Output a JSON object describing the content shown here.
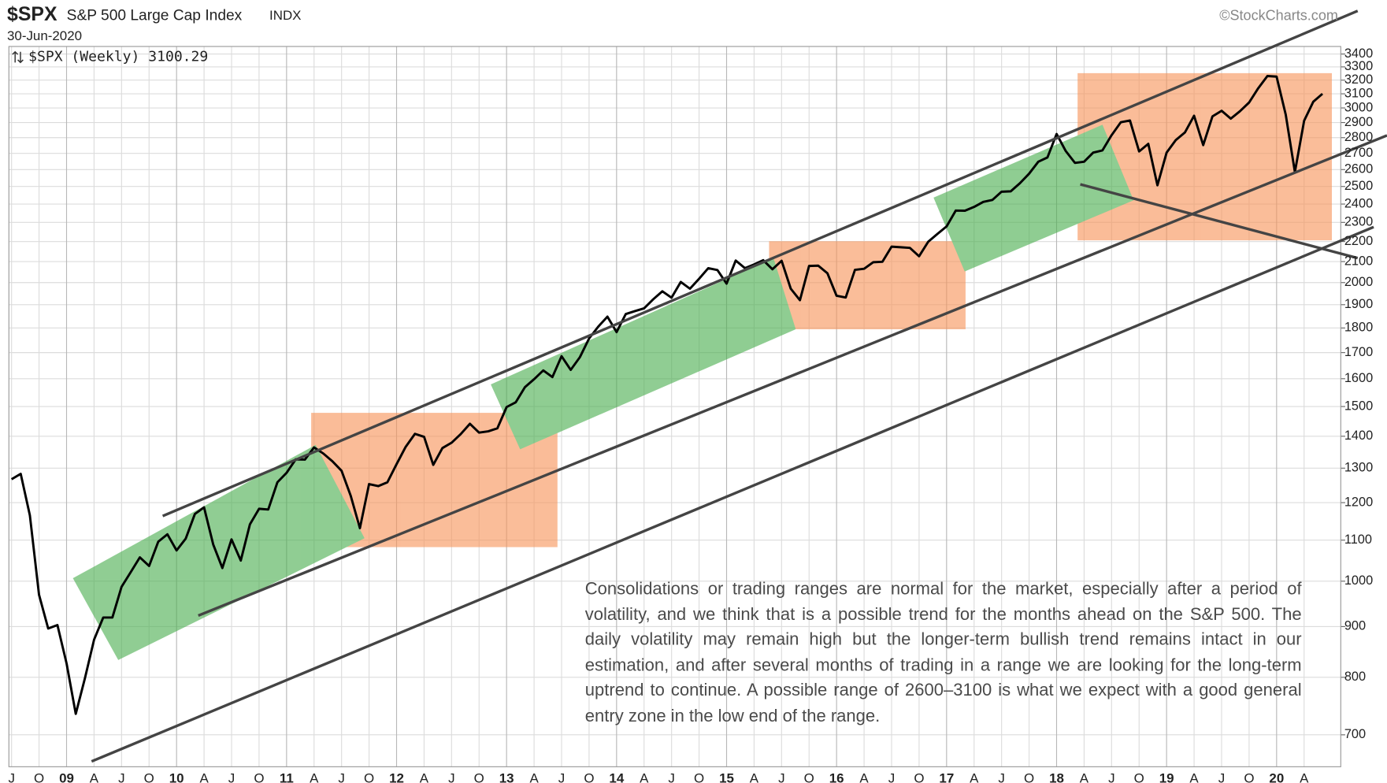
{
  "chart_data": {
    "type": "line",
    "symbol": "$SPX",
    "title": "S&P 500 Large Cap Index",
    "exchange": "INDX",
    "date": "30-Jun-2020",
    "watermark": "©StockCharts.com",
    "legend": "$SPX (Weekly) 3100.29",
    "annotation": "Consolidations or trading ranges are normal for the market, especially after a period of volatility, and we think that is a possible trend for the months ahead on the S&P 500. The daily volatility may remain high but the longer-term bullish trend remains intact in our estimation, and after several months of trading in a range we are looking for the long-term uptrend to continue. A possible range of 2600–3100 is what we expect with a good general entry zone in the low end of the range.",
    "color": "#000000",
    "log": true,
    "grid": true,
    "xlim": [
      "2008-07",
      "2020-08"
    ],
    "ylim": [
      650,
      3460
    ],
    "yticks": [
      700,
      800,
      900,
      1000,
      1100,
      1200,
      1300,
      1400,
      1500,
      1600,
      1700,
      1800,
      1900,
      2000,
      2100,
      2200,
      2300,
      2400,
      2500,
      2600,
      2700,
      2800,
      2900,
      3000,
      3100,
      3200,
      3300,
      3400
    ],
    "xticks": [
      {
        "value": "2008-07",
        "label": "J"
      },
      {
        "value": "2008-10",
        "label": "O"
      },
      {
        "value": "2009-01",
        "label": "09"
      },
      {
        "value": "2009-04",
        "label": "A"
      },
      {
        "value": "2009-07",
        "label": "J"
      },
      {
        "value": "2009-10",
        "label": "O"
      },
      {
        "value": "2010-01",
        "label": "10"
      },
      {
        "value": "2010-04",
        "label": "A"
      },
      {
        "value": "2010-07",
        "label": "J"
      },
      {
        "value": "2010-10",
        "label": "O"
      },
      {
        "value": "2011-01",
        "label": "11"
      },
      {
        "value": "2011-04",
        "label": "A"
      },
      {
        "value": "2011-07",
        "label": "J"
      },
      {
        "value": "2011-10",
        "label": "O"
      },
      {
        "value": "2012-01",
        "label": "12"
      },
      {
        "value": "2012-04",
        "label": "A"
      },
      {
        "value": "2012-07",
        "label": "J"
      },
      {
        "value": "2012-10",
        "label": "O"
      },
      {
        "value": "2013-01",
        "label": "13"
      },
      {
        "value": "2013-04",
        "label": "A"
      },
      {
        "value": "2013-07",
        "label": "J"
      },
      {
        "value": "2013-10",
        "label": "O"
      },
      {
        "value": "2014-01",
        "label": "14"
      },
      {
        "value": "2014-04",
        "label": "A"
      },
      {
        "value": "2014-07",
        "label": "J"
      },
      {
        "value": "2014-10",
        "label": "O"
      },
      {
        "value": "2015-01",
        "label": "15"
      },
      {
        "value": "2015-04",
        "label": "A"
      },
      {
        "value": "2015-07",
        "label": "J"
      },
      {
        "value": "2015-10",
        "label": "O"
      },
      {
        "value": "2016-01",
        "label": "16"
      },
      {
        "value": "2016-04",
        "label": "A"
      },
      {
        "value": "2016-07",
        "label": "J"
      },
      {
        "value": "2016-10",
        "label": "O"
      },
      {
        "value": "2017-01",
        "label": "17"
      },
      {
        "value": "2017-04",
        "label": "A"
      },
      {
        "value": "2017-07",
        "label": "J"
      },
      {
        "value": "2017-10",
        "label": "O"
      },
      {
        "value": "2018-01",
        "label": "18"
      },
      {
        "value": "2018-04",
        "label": "A"
      },
      {
        "value": "2018-07",
        "label": "J"
      },
      {
        "value": "2018-10",
        "label": "O"
      },
      {
        "value": "2019-01",
        "label": "19"
      },
      {
        "value": "2019-04",
        "label": "A"
      },
      {
        "value": "2019-07",
        "label": "J"
      },
      {
        "value": "2019-10",
        "label": "O"
      },
      {
        "value": "2020-01",
        "label": "20"
      },
      {
        "value": "2020-04",
        "label": "A"
      }
    ],
    "x": [
      "2008-07",
      "2008-08",
      "2008-09",
      "2008-10",
      "2008-11",
      "2008-12",
      "2009-01",
      "2009-02",
      "2009-03",
      "2009-04",
      "2009-05",
      "2009-06",
      "2009-07",
      "2009-08",
      "2009-09",
      "2009-10",
      "2009-11",
      "2009-12",
      "2010-01",
      "2010-02",
      "2010-03",
      "2010-04",
      "2010-05",
      "2010-06",
      "2010-07",
      "2010-08",
      "2010-09",
      "2010-10",
      "2010-11",
      "2010-12",
      "2011-01",
      "2011-02",
      "2011-03",
      "2011-04",
      "2011-05",
      "2011-06",
      "2011-07",
      "2011-08",
      "2011-09",
      "2011-10",
      "2011-11",
      "2011-12",
      "2012-01",
      "2012-02",
      "2012-03",
      "2012-04",
      "2012-05",
      "2012-06",
      "2012-07",
      "2012-08",
      "2012-09",
      "2012-10",
      "2012-11",
      "2012-12",
      "2013-01",
      "2013-02",
      "2013-03",
      "2013-04",
      "2013-05",
      "2013-06",
      "2013-07",
      "2013-08",
      "2013-09",
      "2013-10",
      "2013-11",
      "2013-12",
      "2014-01",
      "2014-02",
      "2014-03",
      "2014-04",
      "2014-05",
      "2014-06",
      "2014-07",
      "2014-08",
      "2014-09",
      "2014-10",
      "2014-11",
      "2014-12",
      "2015-01",
      "2015-02",
      "2015-03",
      "2015-04",
      "2015-05",
      "2015-06",
      "2015-07",
      "2015-08",
      "2015-09",
      "2015-10",
      "2015-11",
      "2015-12",
      "2016-01",
      "2016-02",
      "2016-03",
      "2016-04",
      "2016-05",
      "2016-06",
      "2016-07",
      "2016-08",
      "2016-09",
      "2016-10",
      "2016-11",
      "2016-12",
      "2017-01",
      "2017-02",
      "2017-03",
      "2017-04",
      "2017-05",
      "2017-06",
      "2017-07",
      "2017-08",
      "2017-09",
      "2017-10",
      "2017-11",
      "2017-12",
      "2018-01",
      "2018-02",
      "2018-03",
      "2018-04",
      "2018-05",
      "2018-06",
      "2018-07",
      "2018-08",
      "2018-09",
      "2018-10",
      "2018-11",
      "2018-12",
      "2019-01",
      "2019-02",
      "2019-03",
      "2019-04",
      "2019-05",
      "2019-06",
      "2019-07",
      "2019-08",
      "2019-09",
      "2019-10",
      "2019-11",
      "2019-12",
      "2020-01",
      "2020-02",
      "2020-03",
      "2020-04",
      "2020-05",
      "2020-06"
    ],
    "values": [
      1267,
      1283,
      1165,
      969,
      896,
      903,
      826,
      735,
      798,
      873,
      919,
      919,
      987,
      1021,
      1057,
      1036,
      1096,
      1115,
      1074,
      1104,
      1169,
      1187,
      1089,
      1031,
      1102,
      1049,
      1141,
      1183,
      1181,
      1258,
      1286,
      1327,
      1326,
      1364,
      1345,
      1321,
      1292,
      1219,
      1131,
      1253,
      1247,
      1258,
      1312,
      1366,
      1408,
      1398,
      1310,
      1362,
      1379,
      1407,
      1441,
      1412,
      1416,
      1426,
      1498,
      1515,
      1569,
      1598,
      1631,
      1606,
      1686,
      1633,
      1682,
      1757,
      1806,
      1848,
      1783,
      1859,
      1872,
      1884,
      1924,
      1960,
      1931,
      2003,
      1972,
      2018,
      2068,
      2059,
      1995,
      2105,
      2068,
      2086,
      2107,
      2063,
      2104,
      1972,
      1920,
      2079,
      2080,
      2044,
      1940,
      1932,
      2060,
      2065,
      2097,
      2099,
      2174,
      2171,
      2168,
      2126,
      2199,
      2239,
      2279,
      2364,
      2363,
      2384,
      2412,
      2423,
      2470,
      2472,
      2519,
      2575,
      2648,
      2674,
      2824,
      2714,
      2641,
      2648,
      2705,
      2718,
      2816,
      2902,
      2914,
      2712,
      2760,
      2507,
      2704,
      2784,
      2834,
      2946,
      2752,
      2942,
      2980,
      2926,
      2977,
      3038,
      3141,
      3231,
      3226,
      2954,
      2585,
      2912,
      3044,
      3100
    ]
  }
}
